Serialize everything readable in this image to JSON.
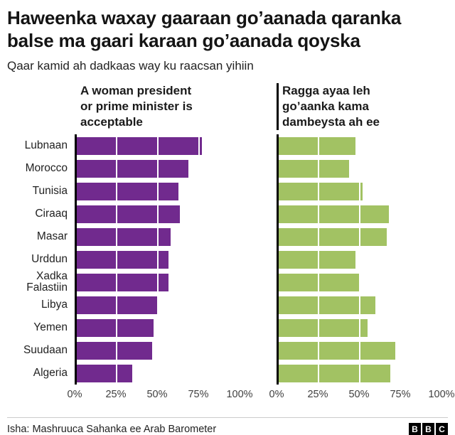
{
  "header": {
    "title": "Haweenka waxay gaaraan go’aanada qaranka\nbalse ma gaari karaan go’aanada qoyska",
    "subtitle": "Qaar kamid ah dadkaas way ku raacsan yihiin"
  },
  "charts": {
    "left_title": "A woman president\nor prime minister is\nacceptable",
    "right_title": "Ragga ayaa leh\ngo’aanka kama\ndambeysta ah ee"
  },
  "chart_data": {
    "type": "bar",
    "orientation": "horizontal",
    "categories": [
      "Lubnaan",
      "Morocco",
      "Tunisia",
      "Ciraaq",
      "Masar",
      "Urddun",
      "Xadka Falastiin",
      "Libya",
      "Yemen",
      "Suudaan",
      "Algeria"
    ],
    "series": [
      {
        "name": "A woman president or prime minister is acceptable",
        "color": "#712a8e",
        "values": [
          77,
          69,
          63,
          64,
          58,
          57,
          57,
          50,
          48,
          47,
          35
        ]
      },
      {
        "name": "Ragga ayaa leh go’aanka kama dambeysta ah ee",
        "color": "#a2c263",
        "values": [
          48,
          44,
          52,
          68,
          67,
          48,
          50,
          60,
          55,
          72,
          69
        ]
      }
    ],
    "x_ticks": [
      "0%",
      "25%",
      "50%",
      "75%",
      "100%"
    ],
    "xlim": [
      0,
      100
    ],
    "grid": "white vertical gridlines over bars at 25, 50, 75",
    "legend_position": "none"
  },
  "colors": {
    "left_bar": "#712a8e",
    "right_bar": "#a2c263",
    "axis_line": "#000000",
    "text": "#1a1a1a"
  },
  "footer": {
    "source": "Isha: Mashruuca Sahanka ee Arab Barometer",
    "logo_letters": [
      "B",
      "B",
      "C"
    ]
  }
}
